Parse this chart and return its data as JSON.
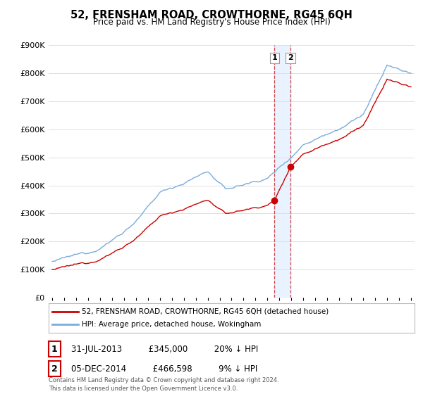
{
  "title": "52, FRENSHAM ROAD, CROWTHORNE, RG45 6QH",
  "subtitle": "Price paid vs. HM Land Registry's House Price Index (HPI)",
  "ylim": [
    0,
    900000
  ],
  "yticks": [
    0,
    100000,
    200000,
    300000,
    400000,
    500000,
    600000,
    700000,
    800000,
    900000
  ],
  "legend_line1": "52, FRENSHAM ROAD, CROWTHORNE, RG45 6QH (detached house)",
  "legend_line2": "HPI: Average price, detached house, Wokingham",
  "line1_color": "#cc0000",
  "line2_color": "#7aaddb",
  "transaction1_date": "31-JUL-2013",
  "transaction1_price": "£345,000",
  "transaction1_note": "20% ↓ HPI",
  "transaction2_date": "05-DEC-2014",
  "transaction2_price": "£466,598",
  "transaction2_note": "9% ↓ HPI",
  "footer": "Contains HM Land Registry data © Crown copyright and database right 2024.\nThis data is licensed under the Open Government Licence v3.0.",
  "sale1_year": 2013.58,
  "sale1_price": 345000,
  "sale2_year": 2014.92,
  "sale2_price": 466598,
  "highlight_xmin": 2013.58,
  "highlight_xmax": 2014.92,
  "background_color": "#ffffff",
  "grid_color": "#e0e0e0",
  "xlim_min": 1994.7,
  "xlim_max": 2025.3
}
